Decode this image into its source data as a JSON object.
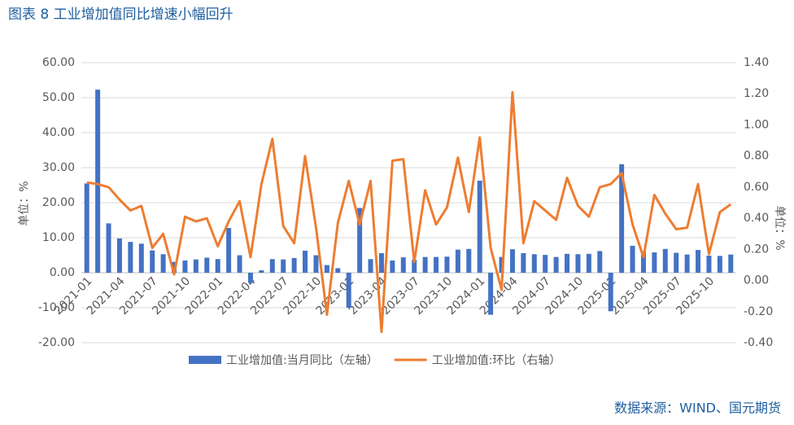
{
  "chart_data": {
    "type": "bar-line",
    "title": "图表 8 工业增加值同比增速小幅回升",
    "source": "数据来源：WIND、国元期货",
    "y_label": "单位：%",
    "y2_label": "单位：%",
    "categories": [
      "2021-01",
      null,
      null,
      "2021-04",
      null,
      null,
      "2021-07",
      null,
      null,
      "2021-10",
      null,
      null,
      "2022-01",
      null,
      null,
      "2022-04",
      null,
      null,
      "2022-07",
      null,
      null,
      "2022-10",
      null,
      null,
      "2023-01",
      null,
      null,
      "2023-04",
      null,
      null,
      "2023-07",
      null,
      null,
      "2023-10",
      null,
      null,
      "2024-01",
      null,
      null,
      "2024-04",
      null,
      null,
      "2024-07",
      null,
      null,
      "2024-10",
      null,
      null,
      "2025-01",
      null,
      null,
      "2025-04",
      null,
      null,
      "2025-07",
      null,
      null,
      "2025-10",
      null,
      null
    ],
    "series": [
      {
        "name": "工业增加值:当月同比（左轴）",
        "type": "bar",
        "color": "#4472c4",
        "axis": "y",
        "values": [
          25.5,
          52.3,
          14.1,
          9.8,
          8.8,
          8.3,
          6.4,
          5.3,
          3.1,
          3.5,
          3.8,
          4.3,
          3.9,
          12.8,
          5.0,
          -2.9,
          0.7,
          3.9,
          3.8,
          4.2,
          6.3,
          5.0,
          2.2,
          1.3,
          -10,
          18.5,
          3.9,
          5.6,
          3.5,
          4.4,
          3.7,
          4.5,
          4.5,
          4.6,
          6.6,
          6.8,
          26.3,
          -12,
          4.5,
          6.7,
          5.6,
          5.3,
          5.1,
          4.5,
          5.4,
          5.3,
          5.4,
          6.2,
          -11,
          31,
          7.7,
          6.1,
          5.8,
          6.8,
          5.7,
          5.2,
          6.5,
          4.9,
          4.8,
          5.2
        ]
      },
      {
        "name": "工业增加值:环比（右轴）",
        "type": "line",
        "color": "#ed7d31",
        "axis": "y2",
        "values": [
          0.63,
          0.62,
          0.6,
          0.52,
          0.45,
          0.48,
          0.21,
          0.3,
          0.04,
          0.41,
          0.38,
          0.4,
          0.22,
          0.38,
          0.51,
          0.15,
          0.62,
          0.91,
          0.35,
          0.24,
          0.8,
          0.34,
          -0.22,
          0.37,
          0.64,
          0.36,
          0.64,
          -0.33,
          0.77,
          0.78,
          0.12,
          0.58,
          0.36,
          0.47,
          0.79,
          0.44,
          0.92,
          0.21,
          -0.06,
          1.21,
          0.24,
          0.51,
          0.45,
          0.39,
          0.66,
          0.48,
          0.41,
          0.6,
          0.62,
          0.69,
          0.36,
          0.15,
          0.55,
          0.43,
          0.33,
          0.34,
          0.62,
          0.17,
          0.44,
          0.49
        ]
      }
    ],
    "ylim": [
      -20,
      60
    ],
    "yticks": [
      {
        "value": -20,
        "label": "-20.00"
      },
      {
        "value": -10,
        "label": "-10.00"
      },
      {
        "value": 0,
        "label": "0.00"
      },
      {
        "value": 10,
        "label": "10.00"
      },
      {
        "value": 20,
        "label": "20.00"
      },
      {
        "value": 30,
        "label": "30.00"
      },
      {
        "value": 40,
        "label": "40.00"
      },
      {
        "value": 50,
        "label": "50.00"
      },
      {
        "value": 60,
        "label": "60.00"
      }
    ],
    "y2lim": [
      -0.4,
      1.4
    ],
    "y2ticks": [
      {
        "value": -0.4,
        "label": "-0.40"
      },
      {
        "value": -0.2,
        "label": "-0.20"
      },
      {
        "value": 0,
        "label": "0.00"
      },
      {
        "value": 0.2,
        "label": "0.20"
      },
      {
        "value": 0.4,
        "label": "0.40"
      },
      {
        "value": 0.6,
        "label": "0.60"
      },
      {
        "value": 0.8,
        "label": "0.80"
      },
      {
        "value": 1,
        "label": "1.00"
      },
      {
        "value": 1.2,
        "label": "1.20"
      },
      {
        "value": 1.4,
        "label": "1.40"
      }
    ],
    "grid": true
  }
}
